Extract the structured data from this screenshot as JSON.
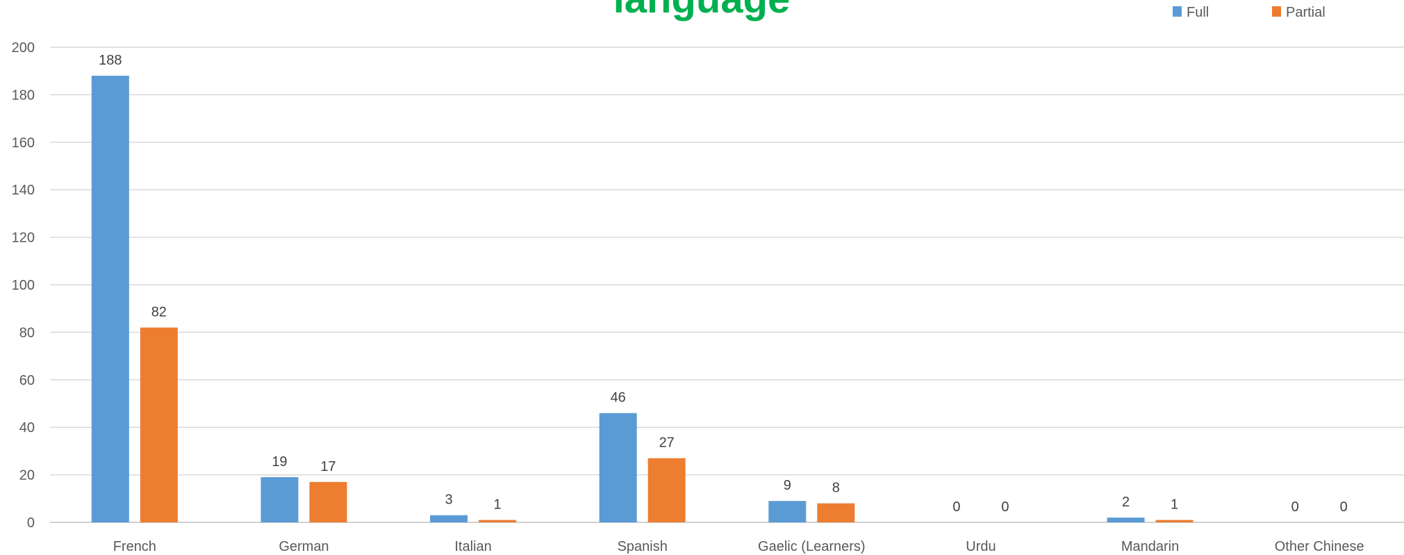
{
  "chart_data": {
    "type": "bar",
    "title": "language",
    "categories": [
      "French",
      "German",
      "Italian",
      "Spanish",
      "Gaelic (Learners)",
      "Urdu",
      "Mandarin",
      "Other Chinese"
    ],
    "series": [
      {
        "name": "Full",
        "color": "#5b9bd5",
        "values": [
          188,
          19,
          3,
          46,
          9,
          0,
          2,
          0
        ]
      },
      {
        "name": "Partial",
        "color": "#ed7d31",
        "values": [
          82,
          17,
          1,
          27,
          8,
          0,
          1,
          0
        ]
      }
    ],
    "yticks": [
      "0",
      "20",
      "40",
      "60",
      "80",
      "100",
      "120",
      "140",
      "160",
      "180",
      "200"
    ],
    "ylim": [
      0,
      200
    ],
    "grid": true,
    "legend": "top-right"
  }
}
